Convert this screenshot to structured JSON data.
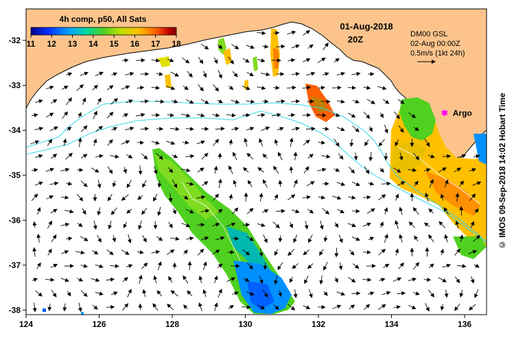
{
  "colorbar": {
    "title": "4h comp, p50, All Sats",
    "min": 11,
    "max": 18,
    "ticks": [
      "11",
      "12",
      "13",
      "14",
      "15",
      "16",
      "17",
      "18"
    ],
    "colors": [
      "#00008f",
      "#0030ff",
      "#00a0ff",
      "#00d8a0",
      "#50d020",
      "#c0e000",
      "#ffc000",
      "#ff6000",
      "#c00000",
      "#800000"
    ]
  },
  "header": {
    "date": "01-Aug-2018",
    "time": "20Z",
    "model": "DM00 GSL",
    "model_time": "02-Aug 00:00Z",
    "scale": "0.5m/s (1kt 24h)"
  },
  "argo": {
    "label": "Argo",
    "lon": 135.45,
    "lat": -33.6,
    "color": "#ff00ff"
  },
  "axes": {
    "lon_ticks": [
      "124",
      "126",
      "128",
      "130",
      "132",
      "134",
      "136"
    ],
    "lat_ticks": [
      "-32",
      "-33",
      "-34",
      "-35",
      "-36",
      "-37",
      "-38"
    ],
    "lon_range": [
      124,
      136.6
    ],
    "lat_range": [
      -38.1,
      -31.3
    ]
  },
  "credit": "© IMOS 09-Sep-2018 14:02 Hobart Time",
  "colors": {
    "land": "#fcc48c",
    "sea": "#ffffff",
    "isobath": "#30d8e8",
    "arrow": "#000000"
  }
}
